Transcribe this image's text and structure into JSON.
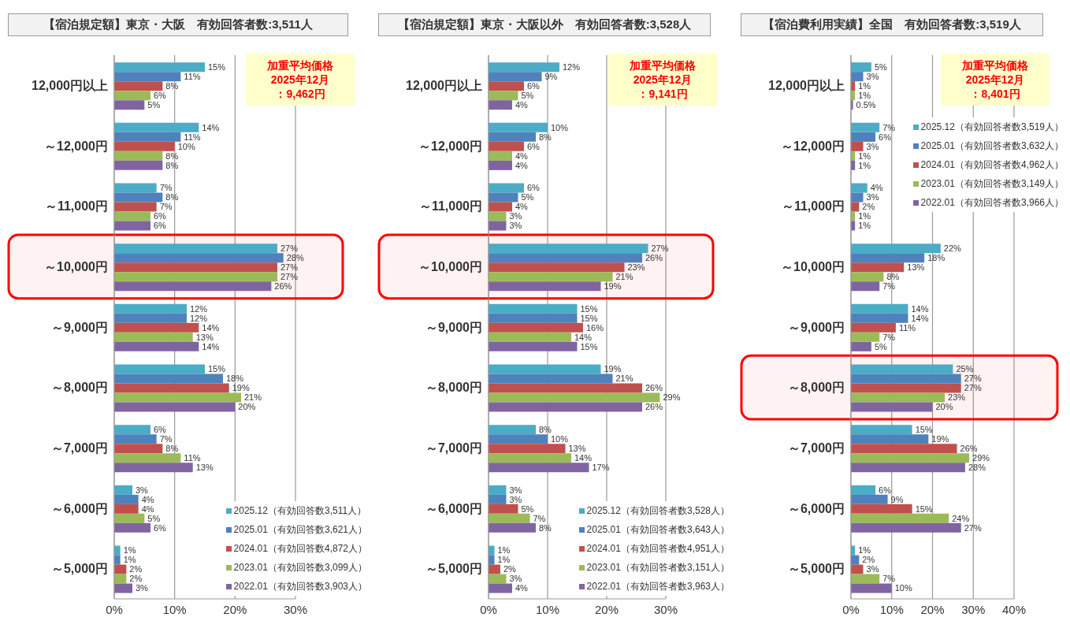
{
  "chart_data": [
    {
      "type": "bar",
      "orientation": "horizontal",
      "title": "【宿泊規定額】東京・大阪　有効回答者数:3,511人",
      "categories": [
        "12,000円以上",
        "～12,000円",
        "～11,000円",
        "～10,000円",
        "～9,000円",
        "～8,000円",
        "～7,000円",
        "～6,000円",
        "～5,000円"
      ],
      "series": [
        {
          "name": "2025.12（有効回答数3,511人）",
          "color": "#4bacc6",
          "values": [
            15,
            14,
            7,
            27,
            12,
            15,
            6,
            3,
            1
          ],
          "value_labels": [
            "15%",
            "14%",
            "7%",
            "27%",
            "12%",
            "15%",
            "6%",
            "3%",
            "1%"
          ]
        },
        {
          "name": "2025.01（有効回答数3,621人）",
          "color": "#4f81bd",
          "values": [
            11,
            11,
            8,
            28,
            12,
            18,
            7,
            4,
            1
          ],
          "value_labels": [
            "11%",
            "11%",
            "8%",
            "28%",
            "12%",
            "18%",
            "7%",
            "4%",
            "1%"
          ]
        },
        {
          "name": "2024.01（有効回答数4,872人）",
          "color": "#c0504d",
          "values": [
            8,
            10,
            7,
            27,
            14,
            19,
            8,
            4,
            2
          ],
          "value_labels": [
            "8%",
            "10%",
            "7%",
            "27%",
            "14%",
            "19%",
            "8%",
            "4%",
            "2%"
          ]
        },
        {
          "name": "2023.01（有効回答数3,099人）",
          "color": "#9bbb59",
          "values": [
            6,
            8,
            6,
            27,
            13,
            21,
            11,
            5,
            2
          ],
          "value_labels": [
            "6%",
            "8%",
            "6%",
            "27%",
            "13%",
            "21%",
            "11%",
            "5%",
            "2%"
          ]
        },
        {
          "name": "2022.01（有効回答数3,903人）",
          "color": "#8064a2",
          "values": [
            5,
            8,
            6,
            26,
            14,
            20,
            13,
            6,
            3
          ],
          "value_labels": [
            "5%",
            "8%",
            "6%",
            "26%",
            "14%",
            "20%",
            "13%",
            "6%",
            "3%"
          ]
        }
      ],
      "xlim": [
        0,
        30
      ],
      "xticks": [
        {
          "value": 0,
          "label": "0%"
        },
        {
          "value": 10,
          "label": "10%"
        },
        {
          "value": 20,
          "label": "20%"
        },
        {
          "value": 30,
          "label": "30%"
        }
      ],
      "grid": "x",
      "legend": "bottom right",
      "annotations": [
        "加重平均価格",
        "2025年12月",
        "：9,462円"
      ],
      "bands": [
        {
          "axis": "y",
          "from": "～10,000円",
          "to": "～10,000円",
          "color": "#ff0000"
        }
      ]
    },
    {
      "type": "bar",
      "orientation": "horizontal",
      "title": "【宿泊規定額】東京・大阪以外　有効回答者数:3,528人",
      "categories": [
        "12,000円以上",
        "～12,000円",
        "～11,000円",
        "～10,000円",
        "～9,000円",
        "～8,000円",
        "～7,000円",
        "～6,000円",
        "～5,000円"
      ],
      "series": [
        {
          "name": "2025.12（有効回答者数3,528人）",
          "color": "#4bacc6",
          "values": [
            12,
            10,
            6,
            27,
            15,
            19,
            8,
            3,
            1
          ],
          "value_labels": [
            "12%",
            "10%",
            "6%",
            "27%",
            "15%",
            "19%",
            "8%",
            "3%",
            "1%"
          ]
        },
        {
          "name": "2025.01（有効回答者数3,643人）",
          "color": "#4f81bd",
          "values": [
            9,
            8,
            5,
            26,
            15,
            21,
            10,
            3,
            1
          ],
          "value_labels": [
            "9%",
            "8%",
            "5%",
            "26%",
            "15%",
            "21%",
            "10%",
            "3%",
            "1%"
          ]
        },
        {
          "name": "2024.01（有効回答者数4,951人）",
          "color": "#c0504d",
          "values": [
            6,
            6,
            4,
            23,
            16,
            26,
            13,
            5,
            2
          ],
          "value_labels": [
            "6%",
            "6%",
            "4%",
            "23%",
            "16%",
            "26%",
            "13%",
            "5%",
            "2%"
          ]
        },
        {
          "name": "2023.01（有効回答者数3,151人）",
          "color": "#9bbb59",
          "values": [
            5,
            4,
            3,
            21,
            14,
            29,
            14,
            7,
            3
          ],
          "value_labels": [
            "5%",
            "4%",
            "3%",
            "21%",
            "14%",
            "29%",
            "14%",
            "7%",
            "3%"
          ]
        },
        {
          "name": "2022.01（有効回答者数3,963人）",
          "color": "#8064a2",
          "values": [
            4,
            4,
            3,
            19,
            15,
            26,
            17,
            8,
            4
          ],
          "value_labels": [
            "4%",
            "4%",
            "3%",
            "19%",
            "15%",
            "26%",
            "17%",
            "8%",
            "4%"
          ]
        }
      ],
      "xlim": [
        0,
        30
      ],
      "xticks": [
        {
          "value": 0,
          "label": "0%"
        },
        {
          "value": 10,
          "label": "10%"
        },
        {
          "value": 20,
          "label": "20%"
        },
        {
          "value": 30,
          "label": "30%"
        }
      ],
      "grid": "x",
      "legend": "bottom right",
      "annotations": [
        "加重平均価格",
        "2025年12月",
        "：9,141円"
      ],
      "bands": [
        {
          "axis": "y",
          "from": "～10,000円",
          "to": "～10,000円",
          "color": "#ff0000"
        }
      ]
    },
    {
      "type": "bar",
      "orientation": "horizontal",
      "title": "【宿泊費利用実績】全国　有効回答者数:3,519人",
      "categories": [
        "12,000円以上",
        "～12,000円",
        "～11,000円",
        "～10,000円",
        "～9,000円",
        "～8,000円",
        "～7,000円",
        "～6,000円",
        "～5,000円"
      ],
      "series": [
        {
          "name": "2025.12（有効回答者数3,519人）",
          "color": "#4bacc6",
          "values": [
            5,
            7,
            4,
            22,
            14,
            25,
            15,
            6,
            1
          ],
          "value_labels": [
            "5%",
            "7%",
            "4%",
            "22%",
            "14%",
            "25%",
            "15%",
            "6%",
            "1%"
          ]
        },
        {
          "name": "2025.01（有効回答者数3,632人）",
          "color": "#4f81bd",
          "values": [
            3,
            6,
            3,
            18,
            14,
            27,
            19,
            9,
            2
          ],
          "value_labels": [
            "3%",
            "6%",
            "3%",
            "18%",
            "14%",
            "27%",
            "19%",
            "9%",
            "2%"
          ]
        },
        {
          "name": "2024.01（有効回答者数4,962人）",
          "color": "#c0504d",
          "values": [
            1,
            3,
            2,
            13,
            11,
            27,
            26,
            15,
            3
          ],
          "value_labels": [
            "1%",
            "3%",
            "2%",
            "13%",
            "11%",
            "27%",
            "26%",
            "15%",
            "3%"
          ]
        },
        {
          "name": "2023.01（有効回答者数3,149人）",
          "color": "#9bbb59",
          "values": [
            1,
            1,
            1,
            8,
            7,
            23,
            29,
            24,
            7
          ],
          "value_labels": [
            "1%",
            "1%",
            "1%",
            "8%",
            "7%",
            "23%",
            "29%",
            "24%",
            "7%"
          ]
        },
        {
          "name": "2022.01（有効回答者数3,966人）",
          "color": "#8064a2",
          "values": [
            0.5,
            1,
            1,
            7,
            5,
            20,
            28,
            27,
            10
          ],
          "value_labels": [
            "0.5%",
            "1%",
            "1%",
            "7%",
            "5%",
            "20%",
            "28%",
            "27%",
            "10%"
          ]
        }
      ],
      "xlim": [
        0,
        40
      ],
      "xticks": [
        {
          "value": 0,
          "label": "0%"
        },
        {
          "value": 10,
          "label": "10%"
        },
        {
          "value": 20,
          "label": "20%"
        },
        {
          "value": 30,
          "label": "30%"
        },
        {
          "value": 40,
          "label": "40%"
        }
      ],
      "grid": "x",
      "legend": "right",
      "annotations": [
        "加重平均価格",
        "2025年12月",
        "：8,401円"
      ],
      "bands": [
        {
          "axis": "y",
          "from": "～8,000円",
          "to": "～8,000円",
          "color": "#ff0000"
        }
      ]
    }
  ]
}
